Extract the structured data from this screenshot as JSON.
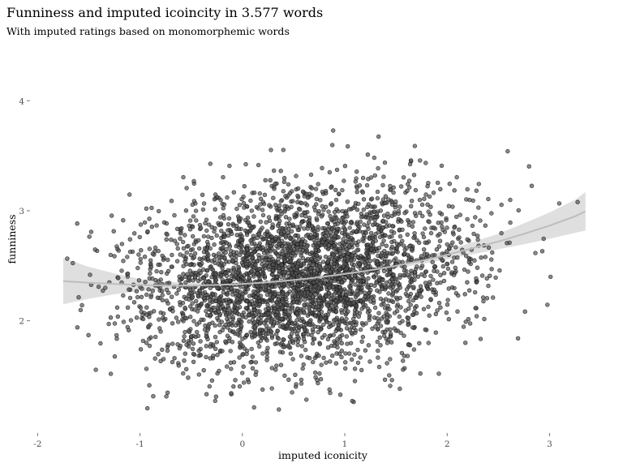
{
  "chart_data": {
    "type": "scatter",
    "title": "Funniness and imputed icoincity in 3.577 words",
    "subtitle": "With imputed ratings based on monomorphemic words",
    "xlabel": "imputed iconicity",
    "ylabel": "funniness",
    "xlim": [
      -2.05,
      3.4
    ],
    "ylim": [
      1.12,
      4.4
    ],
    "x_ticks": [
      -2,
      -1,
      0,
      1,
      2,
      3
    ],
    "x_tick_labels": [
      "-2",
      "-1",
      "0",
      "1",
      "2",
      "3"
    ],
    "y_ticks": [
      2,
      3,
      4
    ],
    "y_tick_labels": [
      "2",
      "3",
      "4"
    ],
    "grid": false,
    "point_count": 3577,
    "point_color": "#555555",
    "point_alpha": 0.7,
    "smooth_line_color": "#bdbdbd",
    "ribbon_color": "#d9d9d9",
    "smooth": {
      "x": [
        -1.75,
        -1.5,
        -1.25,
        -1.0,
        -0.75,
        -0.5,
        -0.25,
        0.0,
        0.25,
        0.5,
        0.75,
        1.0,
        1.25,
        1.5,
        1.75,
        2.0,
        2.25,
        2.5,
        2.75,
        3.0,
        3.25,
        3.35
      ],
      "y": [
        2.36,
        2.345,
        2.335,
        2.325,
        2.32,
        2.32,
        2.325,
        2.335,
        2.35,
        2.37,
        2.395,
        2.425,
        2.46,
        2.5,
        2.545,
        2.6,
        2.66,
        2.72,
        2.79,
        2.865,
        2.95,
        2.995
      ],
      "lower": [
        2.15,
        2.2,
        2.24,
        2.27,
        2.285,
        2.295,
        2.305,
        2.315,
        2.33,
        2.35,
        2.375,
        2.405,
        2.44,
        2.475,
        2.515,
        2.56,
        2.605,
        2.65,
        2.695,
        2.745,
        2.8,
        2.82
      ],
      "upper": [
        2.57,
        2.49,
        2.43,
        2.38,
        2.355,
        2.345,
        2.345,
        2.355,
        2.37,
        2.39,
        2.415,
        2.445,
        2.48,
        2.525,
        2.575,
        2.64,
        2.715,
        2.79,
        2.885,
        2.985,
        3.1,
        3.17
      ]
    },
    "point_distribution": {
      "x_mean": 0.55,
      "x_sd": 0.78,
      "y_mean": 2.4,
      "y_sd": 0.4,
      "seed": 42
    }
  }
}
